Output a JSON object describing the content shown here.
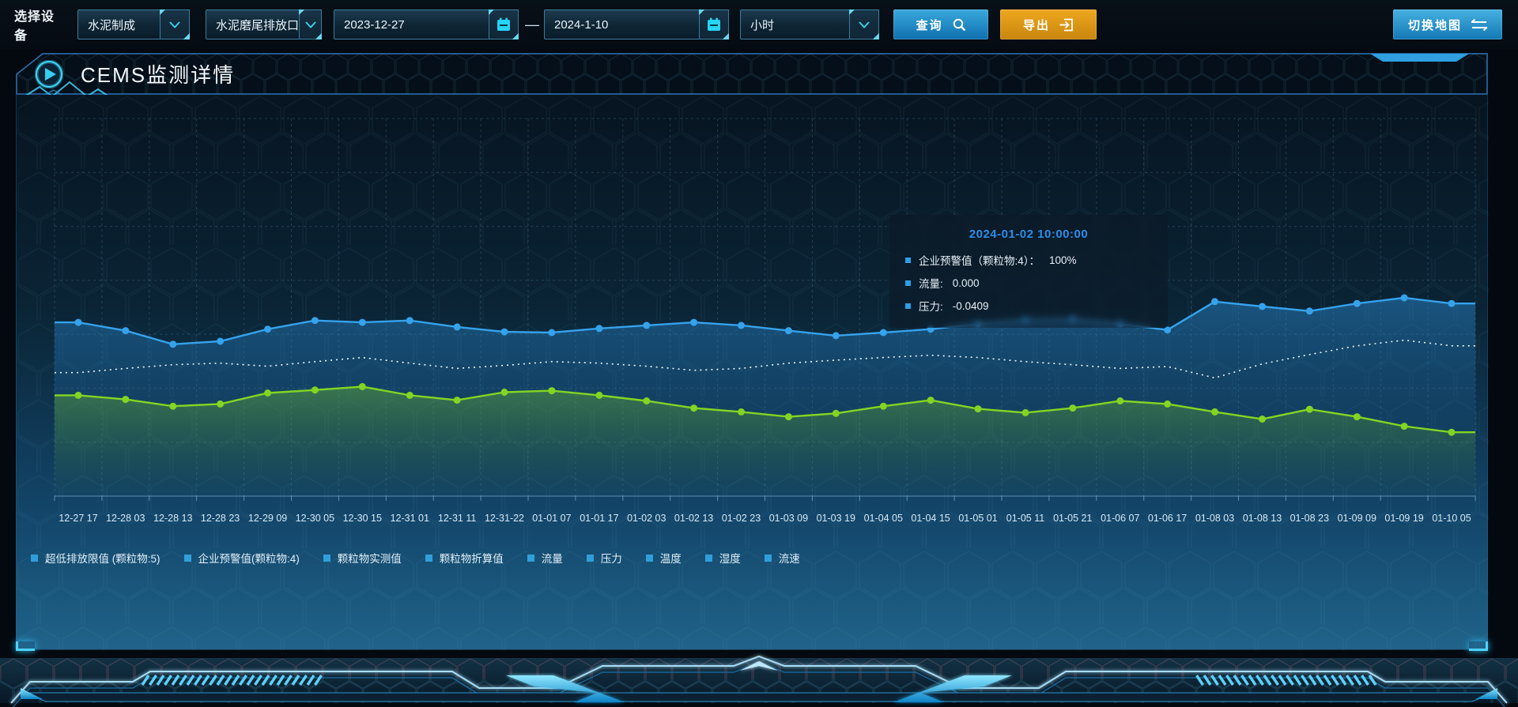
{
  "toolbar": {
    "device_label": "选择设备",
    "device_select": "水泥制成",
    "outlet_select": "水泥磨尾排放口",
    "date_start": "2023-12-27",
    "date_separator": "—",
    "date_end": "2024-1-10",
    "interval_select": "小时",
    "query_button": "查询",
    "export_button": "导出",
    "switch_map_button": "切换地图"
  },
  "panel": {
    "title": "CEMS监测详情"
  },
  "tooltip": {
    "title": "2024-01-02 10:00:00",
    "rows": [
      {
        "label": "企业预警值（颗粒物:4）：",
        "value": "100%"
      },
      {
        "label": "流量:",
        "value": "0.000"
      },
      {
        "label": "压力:",
        "value": "-0.0409"
      }
    ]
  },
  "legend": {
    "marker_color": "#2f9fdc",
    "items": [
      "超低排放限值 (颗粒物:5)",
      "企业预警值(颗粒物:4)",
      "颗粒物实测值",
      "颗粒物折算值",
      "流量",
      "压力",
      "温度",
      "湿度",
      "流速"
    ]
  },
  "chart_data": {
    "type": "line",
    "title": "",
    "xlabel": "",
    "ylabel": "",
    "ylim": [
      0,
      100
    ],
    "grid": true,
    "legend_position": "bottom",
    "categories": [
      "12-27 17",
      "12-28 03",
      "12-28 13",
      "12-28 23",
      "12-29 09",
      "12-30 05",
      "12-30 15",
      "12-31 01",
      "12-31 11",
      "12-31-22",
      "01-01 07",
      "01-01 17",
      "01-02 03",
      "01-02 13",
      "01-02 23",
      "01-03 09",
      "01-03 19",
      "01-04 05",
      "01-04 15",
      "01-05 01",
      "01-05 11",
      "01-05 21",
      "01-06 07",
      "01-06 17",
      "01-08 03",
      "01-08 13",
      "01-08 23",
      "01-09 09",
      "01-09 19",
      "01-10 05"
    ],
    "series": [
      {
        "name": "企业预警值(颗粒物:4)",
        "style": "solid",
        "color": "#35a2ec",
        "marker": true,
        "area": true,
        "values": [
          46,
          43.8,
          40.2,
          41,
          44.2,
          46.5,
          46,
          46.5,
          44.8,
          43.5,
          43.3,
          44.4,
          45.2,
          46,
          45.2,
          43.8,
          42.5,
          43.3,
          44.2,
          45.6,
          46.7,
          46.9,
          45.6,
          44,
          51.5,
          50.2,
          49,
          51,
          52.5,
          51
        ]
      },
      {
        "name": "流量",
        "style": "dotted",
        "color": "#ecf6fb",
        "marker": false,
        "area": false,
        "values": [
          32.7,
          33.8,
          34.8,
          35.2,
          34.4,
          35.6,
          36.7,
          35.2,
          33.8,
          34.6,
          35.6,
          35.2,
          34.4,
          33.3,
          33.8,
          35.2,
          36,
          36.7,
          37.3,
          36.7,
          35.6,
          34.8,
          33.8,
          34.3,
          31.3,
          35,
          37.5,
          39.8,
          41.3,
          39.8
        ]
      },
      {
        "name": "压力",
        "style": "solid",
        "color": "#82d522",
        "marker": true,
        "area": true,
        "values": [
          26.7,
          25.6,
          23.8,
          24.4,
          27.3,
          28.1,
          29,
          26.7,
          25.4,
          27.5,
          27.9,
          26.7,
          25.2,
          23.3,
          22.3,
          21,
          21.9,
          23.8,
          25.4,
          23.1,
          22.1,
          23.3,
          25.2,
          24.4,
          22.3,
          20.4,
          23,
          21,
          18.5,
          16.9
        ]
      }
    ]
  },
  "colors": {
    "accent_cyan": "#35d8f0",
    "button_blue": "#1b85c4",
    "button_orange": "#d98f14",
    "tooltip_title": "#2e8de8",
    "panel_border": "#2b74b6"
  }
}
